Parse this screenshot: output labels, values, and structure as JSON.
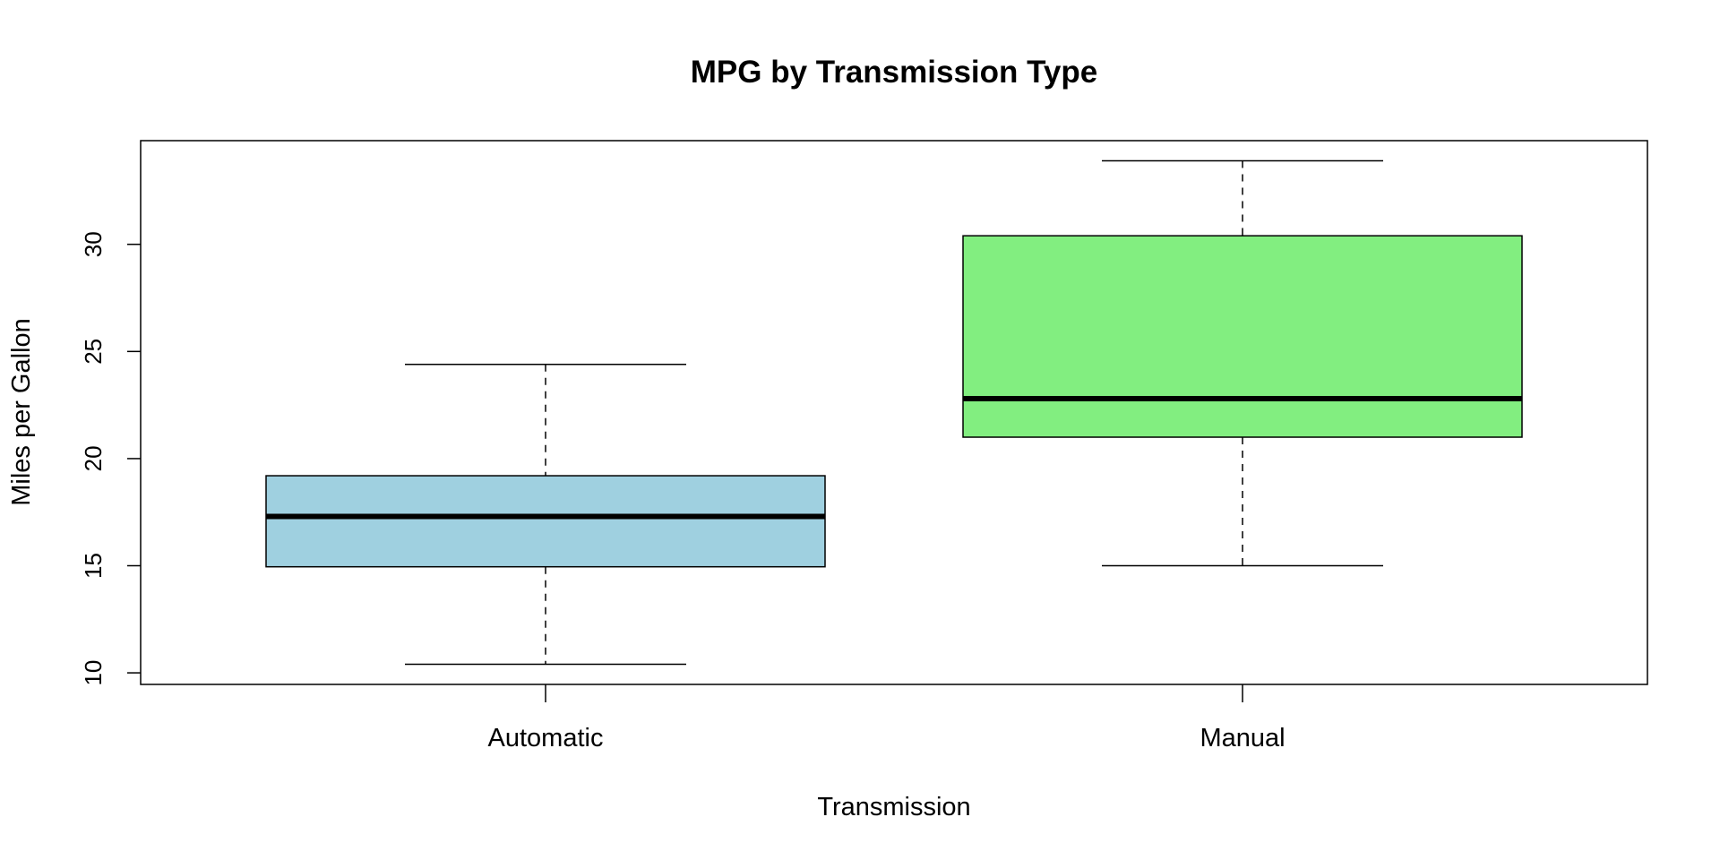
{
  "chart_data": {
    "type": "boxplot",
    "title": "MPG by Transmission Type",
    "xlabel": "Transmission",
    "ylabel": "Miles per Gallon",
    "categories": [
      "Automatic",
      "Manual"
    ],
    "series": [
      {
        "category": "Automatic",
        "min": 10.4,
        "q1": 14.95,
        "median": 17.3,
        "q3": 19.2,
        "max": 24.4,
        "color": "#9fd0e0"
      },
      {
        "category": "Manual",
        "min": 15.0,
        "q1": 21.0,
        "median": 22.8,
        "q3": 30.4,
        "max": 33.9,
        "color": "#82ee80"
      }
    ],
    "yticks": [
      10,
      15,
      20,
      25,
      30
    ],
    "ylim": [
      9.46,
      34.84
    ],
    "grid": false,
    "legend": "none"
  }
}
